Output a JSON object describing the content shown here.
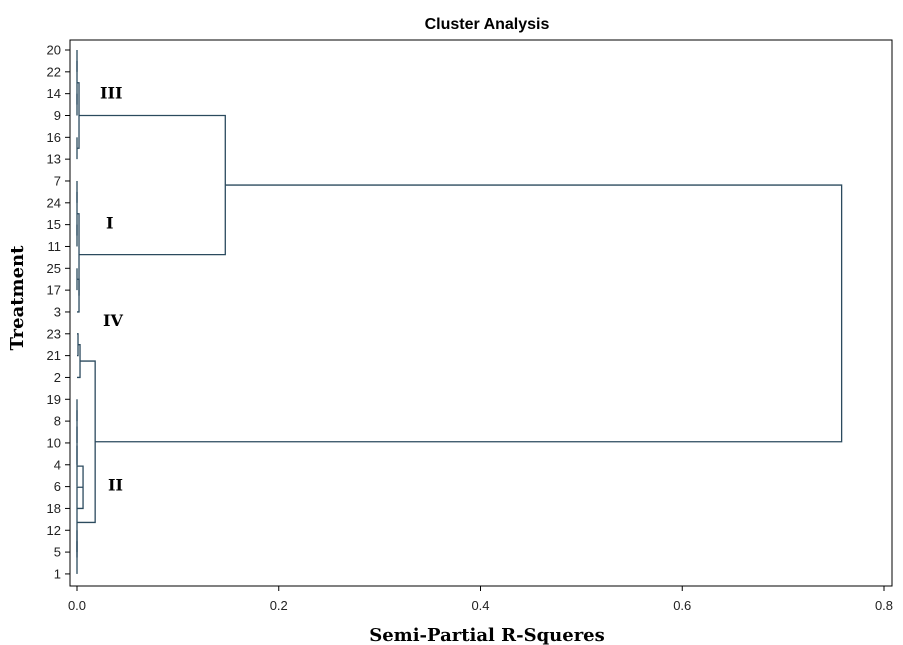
{
  "chart_data": {
    "type": "dendrogram",
    "title": "Cluster Analysis",
    "xlabel": "Semi-Partial R-Squeres",
    "ylabel": "Treatment",
    "xlim": [
      0,
      0.8
    ],
    "x_ticks": [
      "0.0",
      "0.2",
      "0.4",
      "0.6",
      "0.8"
    ],
    "x_tick_values": [
      0,
      0.2,
      0.4,
      0.6,
      0.8
    ],
    "leaves": [
      "20",
      "22",
      "14",
      "9",
      "16",
      "13",
      "7",
      "24",
      "15",
      "11",
      "25",
      "17",
      "3",
      "23",
      "21",
      "2",
      "19",
      "8",
      "10",
      "4",
      "6",
      "18",
      "12",
      "5",
      "1"
    ],
    "merges": [
      {
        "left": [
          "leaf",
          0
        ],
        "right": [
          "leaf",
          1
        ],
        "height": 0.0
      },
      {
        "left": [
          "leaf",
          2
        ],
        "right": [
          "leaf",
          3
        ],
        "height": 0.0
      },
      {
        "left": [
          "node",
          0
        ],
        "right": [
          "node",
          1
        ],
        "height": 0.0
      },
      {
        "left": [
          "leaf",
          4
        ],
        "right": [
          "leaf",
          5
        ],
        "height": 0.0
      },
      {
        "left": [
          "node",
          2
        ],
        "right": [
          "node",
          3
        ],
        "height": 0.002
      },
      {
        "left": [
          "leaf",
          6
        ],
        "right": [
          "leaf",
          7
        ],
        "height": 0.0
      },
      {
        "left": [
          "leaf",
          8
        ],
        "right": [
          "leaf",
          9
        ],
        "height": 0.0
      },
      {
        "left": [
          "node",
          5
        ],
        "right": [
          "node",
          6
        ],
        "height": 0.0
      },
      {
        "left": [
          "leaf",
          10
        ],
        "right": [
          "leaf",
          11
        ],
        "height": 0.0
      },
      {
        "left": [
          "node",
          8
        ],
        "right": [
          "leaf",
          12
        ],
        "height": 0.002
      },
      {
        "left": [
          "node",
          7
        ],
        "right": [
          "node",
          9
        ],
        "height": 0.002
      },
      {
        "left": [
          "node",
          4
        ],
        "right": [
          "node",
          10
        ],
        "height": 0.147
      },
      {
        "left": [
          "leaf",
          13
        ],
        "right": [
          "leaf",
          14
        ],
        "height": 0.001
      },
      {
        "left": [
          "node",
          12
        ],
        "right": [
          "leaf",
          15
        ],
        "height": 0.003
      },
      {
        "left": [
          "leaf",
          16
        ],
        "right": [
          "leaf",
          17
        ],
        "height": 0.0
      },
      {
        "left": [
          "node",
          14
        ],
        "right": [
          "leaf",
          18
        ],
        "height": 0.0
      },
      {
        "left": [
          "node",
          15
        ],
        "right": [
          "leaf",
          19
        ],
        "height": 0.0
      },
      {
        "left": [
          "node",
          16
        ],
        "right": [
          "leaf",
          20
        ],
        "height": 0.0
      },
      {
        "left": [
          "node",
          17
        ],
        "right": [
          "leaf",
          21
        ],
        "height": 0.006
      },
      {
        "left": [
          "leaf",
          22
        ],
        "right": [
          "leaf",
          23
        ],
        "height": 0.0
      },
      {
        "left": [
          "node",
          19
        ],
        "right": [
          "leaf",
          24
        ],
        "height": 0.0
      },
      {
        "left": [
          "node",
          18
        ],
        "right": [
          "node",
          20
        ],
        "height": 0.0
      },
      {
        "left": [
          "node",
          13
        ],
        "right": [
          "node",
          21
        ],
        "height": 0.018
      },
      {
        "left": [
          "node",
          11
        ],
        "right": [
          "node",
          22
        ],
        "height": 0.758
      }
    ],
    "cluster_labels": [
      {
        "text": "III",
        "near_leaf": 2
      },
      {
        "text": "I",
        "near_leaf": 8
      },
      {
        "text": "IV",
        "near_leaf": 13
      },
      {
        "text": "II",
        "near_leaf": 20
      }
    ],
    "link_color": "#2b4a5e",
    "grid": false,
    "legend": "none"
  }
}
